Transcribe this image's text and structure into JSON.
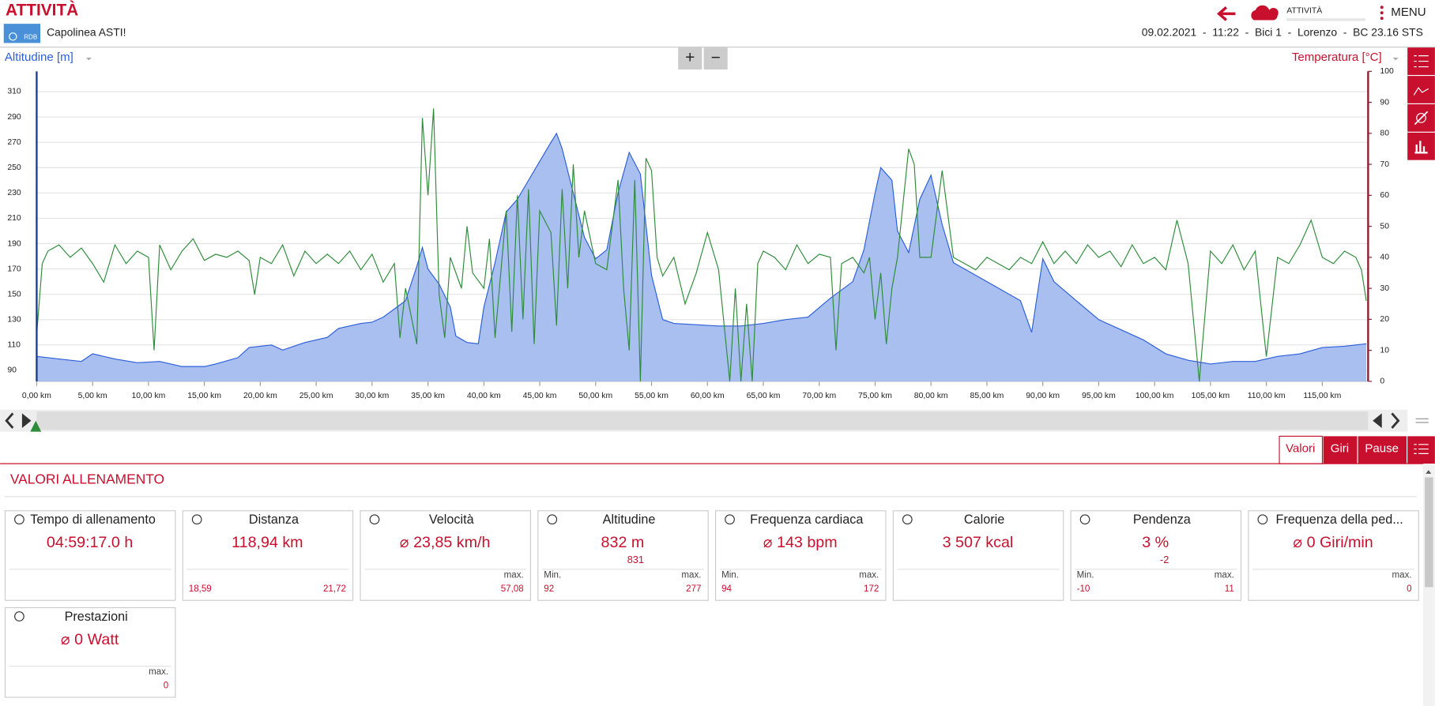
{
  "header": {
    "title": "ATTIVITÀ",
    "subtitle": "Capolinea ASTI!",
    "session": "09.02.2021  -  11:22  -  Bici 1  -  Lorenzo  -  BC 23.16 STS",
    "status": "ATTIVITÀ",
    "menu": "MENU",
    "logo": "RDB"
  },
  "chart_data": {
    "type": "area-line",
    "ylabel": "Altitudine [m]",
    "y2label": "Temperatura [°C]",
    "xlim": [
      0,
      119.1
    ],
    "ylim": [
      81.3,
      326
    ],
    "y2lim": [
      0,
      100
    ],
    "xticks": [
      {
        "value": 0,
        "label": "0,00 km"
      },
      {
        "value": 5,
        "label": "5,00 km"
      },
      {
        "value": 10,
        "label": "10,00 km"
      },
      {
        "value": 15,
        "label": "15,00 km"
      },
      {
        "value": 20,
        "label": "20,00 km"
      },
      {
        "value": 25,
        "label": "25,00 km"
      },
      {
        "value": 30,
        "label": "30,00 km"
      },
      {
        "value": 35,
        "label": "35,00 km"
      },
      {
        "value": 40,
        "label": "40,00 km"
      },
      {
        "value": 45,
        "label": "45,00 km"
      },
      {
        "value": 50,
        "label": "50,00 km"
      },
      {
        "value": 55,
        "label": "55,00 km"
      },
      {
        "value": 60,
        "label": "60,00 km"
      },
      {
        "value": 65,
        "label": "65,00 km"
      },
      {
        "value": 70,
        "label": "70,00 km"
      },
      {
        "value": 75,
        "label": "75,00 km"
      },
      {
        "value": 80,
        "label": "80,00 km"
      },
      {
        "value": 85,
        "label": "85,00 km"
      },
      {
        "value": 90,
        "label": "90,00 km"
      },
      {
        "value": 95,
        "label": "95,00 km"
      },
      {
        "value": 100,
        "label": "100,00 km"
      },
      {
        "value": 105,
        "label": "105,00 km"
      },
      {
        "value": 110,
        "label": "110,00 km"
      },
      {
        "value": 115,
        "label": "115,00 km"
      }
    ],
    "yticks": [
      90,
      110,
      130,
      150,
      170,
      190,
      210,
      230,
      250,
      270,
      290,
      310
    ],
    "y2ticks": [
      0,
      10,
      20,
      30,
      40,
      50,
      60,
      70,
      80,
      90,
      100
    ],
    "grid": true,
    "series": [
      {
        "name": "Altitudine [m]",
        "color": "#2b5fd9",
        "fill": "#a9bff0",
        "x": [
          0,
          2,
          4,
          5,
          7,
          9,
          11,
          13,
          15,
          16,
          18,
          19,
          21,
          22,
          24,
          26,
          27,
          29,
          30,
          31,
          33,
          34,
          34.5,
          35,
          36,
          37,
          37.5,
          38.5,
          39.5,
          40,
          41,
          42,
          43,
          44,
          45,
          46,
          46.5,
          47,
          48,
          49,
          50,
          51,
          52,
          53,
          54,
          55,
          56,
          57,
          59,
          61,
          63,
          65,
          67,
          69,
          71,
          73,
          74,
          75,
          75.5,
          76.5,
          77,
          78,
          79,
          80,
          81,
          82,
          84,
          86,
          88,
          89,
          90,
          91,
          93,
          95,
          97,
          99,
          101,
          103,
          105,
          107,
          109,
          111,
          113,
          115,
          117,
          118.94
        ],
        "values": [
          101,
          99,
          97,
          103,
          99,
          96,
          97,
          93,
          93,
          95,
          100,
          108,
          110,
          106,
          112,
          116,
          123,
          127,
          128,
          132,
          145,
          172,
          187,
          170,
          158,
          140,
          117,
          112,
          111,
          140,
          175,
          215,
          225,
          240,
          255,
          270,
          277,
          265,
          230,
          195,
          178,
          185,
          230,
          262,
          245,
          165,
          130,
          127,
          126,
          125,
          125,
          127,
          130,
          132,
          147,
          160,
          185,
          230,
          250,
          240,
          200,
          183,
          225,
          244,
          205,
          175,
          165,
          155,
          145,
          120,
          178,
          160,
          145,
          130,
          122,
          114,
          103,
          98,
          95,
          97,
          97,
          101,
          103,
          108,
          109,
          111
        ]
      },
      {
        "name": "Temperatura [°C]",
        "color": "#2e8b3a",
        "axis": "y2",
        "x": [
          0,
          0.5,
          1,
          2,
          3,
          4,
          5,
          6,
          7,
          8,
          9,
          10,
          10.5,
          11,
          12,
          13,
          14,
          15,
          16,
          17,
          18,
          19,
          19.5,
          20,
          21,
          22,
          23,
          24,
          25,
          26,
          27,
          28,
          29,
          30,
          31,
          32,
          32.5,
          33,
          34,
          34.5,
          35,
          35.5,
          36,
          36.5,
          37,
          38,
          38.5,
          39,
          40,
          40.5,
          41,
          42,
          42.5,
          43,
          43.5,
          44,
          44.5,
          45,
          46,
          46.5,
          47,
          47.5,
          48,
          48.5,
          49,
          50,
          51,
          52,
          52.5,
          53,
          53.5,
          54,
          54.5,
          55,
          55.5,
          56,
          57,
          58,
          59,
          60,
          61,
          62,
          62.5,
          63,
          63.5,
          64,
          64.5,
          65,
          66,
          67,
          68,
          69,
          70,
          71,
          71.5,
          72,
          73,
          74,
          74.5,
          75,
          75.5,
          76,
          76.5,
          77,
          78,
          78.5,
          79,
          80,
          81,
          82,
          83,
          84,
          85,
          86,
          87,
          88,
          89,
          90,
          91,
          92,
          93,
          94,
          95,
          96,
          97,
          98,
          99,
          100,
          101,
          102,
          103,
          104,
          105,
          106,
          107,
          108,
          109,
          110,
          111,
          112,
          113,
          114,
          115,
          116,
          117,
          118,
          118.5,
          118.94
        ],
        "values": [
          15,
          38,
          42,
          44,
          40,
          43,
          38,
          32,
          44,
          38,
          42,
          40,
          10,
          44,
          36,
          42,
          46,
          39,
          41,
          40,
          42,
          39,
          28,
          40,
          38,
          44,
          34,
          42,
          38,
          41,
          38,
          42,
          36,
          41,
          32,
          38,
          14,
          30,
          12,
          85,
          60,
          88,
          28,
          14,
          40,
          30,
          50,
          35,
          30,
          46,
          14,
          55,
          16,
          60,
          20,
          62,
          12,
          55,
          48,
          18,
          62,
          30,
          70,
          40,
          55,
          38,
          36,
          65,
          30,
          10,
          65,
          0,
          72,
          68,
          40,
          34,
          40,
          25,
          35,
          48,
          36,
          0,
          30,
          0,
          25,
          0,
          38,
          42,
          40,
          36,
          44,
          38,
          41,
          40,
          10,
          38,
          40,
          35,
          40,
          20,
          35,
          12,
          30,
          40,
          75,
          70,
          40,
          40,
          68,
          40,
          38,
          36,
          40,
          38,
          36,
          40,
          38,
          45,
          38,
          42,
          38,
          44,
          40,
          42,
          37,
          44,
          38,
          40,
          36,
          52,
          38,
          0,
          42,
          38,
          44,
          36,
          42,
          8,
          40,
          38,
          44,
          52,
          40,
          38,
          42,
          40,
          36,
          26
        ]
      }
    ]
  },
  "controls": {
    "zoom_in": "+",
    "zoom_out": "−"
  },
  "tabs": [
    "Valori",
    "Giri",
    "Pause"
  ],
  "section": {
    "title": "VALORI ALLENAMENTO"
  },
  "cards": [
    {
      "title": "Tempo di allenamento",
      "value": "04:59:17.0 h"
    },
    {
      "title": "Distanza",
      "value": "118,94 km",
      "left": "18,59",
      "right": "21,72"
    },
    {
      "title": "Velocità",
      "value": "⌀ 23,85 km/h",
      "right_label": "max.",
      "right": "57,08"
    },
    {
      "title": "Altitudine",
      "value": "832 m",
      "sub": "831",
      "left_label": "Min.",
      "left": "92",
      "right_label": "max.",
      "right": "277"
    },
    {
      "title": "Frequenza cardiaca",
      "value": "⌀ 143 bpm",
      "left_label": "Min.",
      "left": "94",
      "right_label": "max.",
      "right": "172"
    },
    {
      "title": "Calorie",
      "value": "3 507 kcal"
    },
    {
      "title": "Pendenza",
      "value": "3 %",
      "sub": "-2",
      "left_label": "Min.",
      "left": "-10",
      "right_label": "max.",
      "right": "11"
    },
    {
      "title": "Frequenza della ped...",
      "value": "⌀ 0 Giri/min",
      "right_label": "max.",
      "right": "0"
    },
    {
      "title": "Prestazioni",
      "value": "⌀ 0 Watt",
      "right_label": "max.",
      "right": "0"
    }
  ]
}
